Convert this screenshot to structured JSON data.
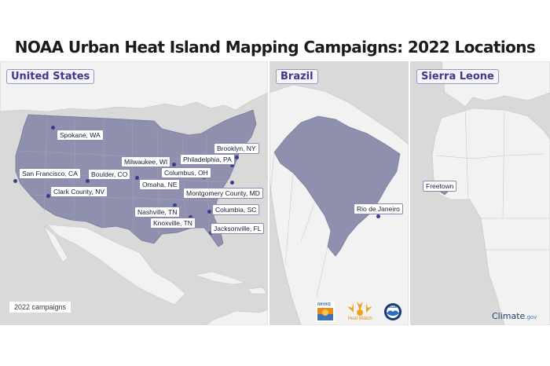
{
  "title": "NOAA Urban Heat Island Mapping Campaigns: 2022 Locations",
  "regions": {
    "us": "United States",
    "brazil": "Brazil",
    "sierra_leone": "Sierra Leone"
  },
  "cities": {
    "spokane": "Spokane, WA",
    "brooklyn": "Brooklyn, NY",
    "milwaukee": "Milwaukee, WI",
    "philadelphia": "Philadelphia, PA",
    "san_francisco": "San Francisco, CA",
    "boulder": "Boulder, CO",
    "columbus": "Columbus, OH",
    "omaha": "Omaha, NE",
    "clark_county": "Clark County, NV",
    "montgomery": "Montgomery County, MD",
    "nashville": "Nashville, TN",
    "columbia": "Columbia, SC",
    "knoxville": "Knoxville, TN",
    "jacksonville": "Jacksonville, FL",
    "rio": "Rio de Janeiro",
    "freetown": "Freetown"
  },
  "footer": {
    "text": "2022 campaigns",
    "logo_left": "NIHHIS",
    "logo_center": "Heat Watch",
    "logo_right": "NOAA",
    "climate_main": "Climate",
    "climate_suffix": ".gov"
  },
  "colors": {
    "highlight": "#8f8fae",
    "land": "#f2f2f2",
    "water": "#d9d9d9",
    "label_text": "#3b3b8a",
    "dot": "#3c3c8a"
  }
}
